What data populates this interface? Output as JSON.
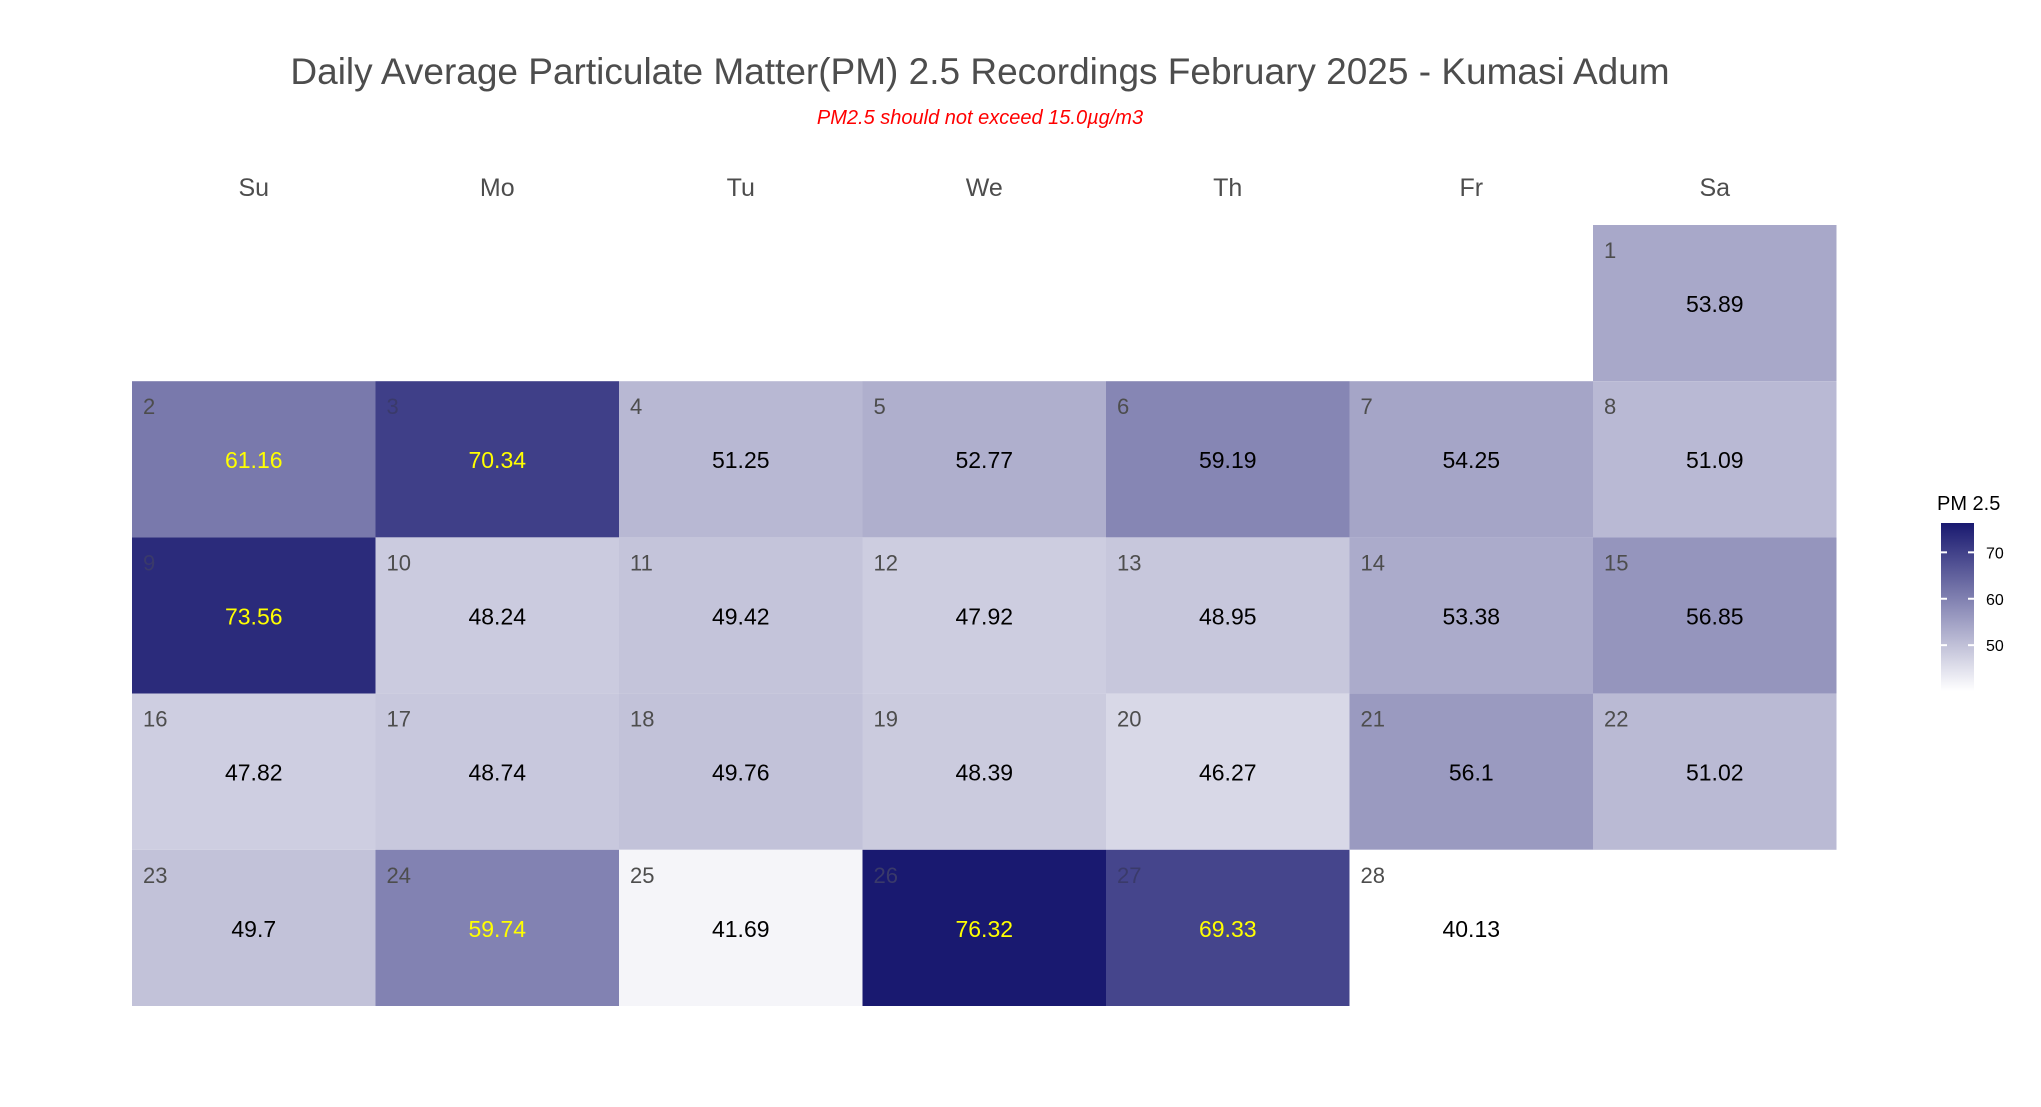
{
  "chart_data": {
    "type": "heatmap",
    "title": "Daily Average Particulate Matter(PM) 2.5 Recordings February 2025 -  Kumasi Adum",
    "subtitle": "PM2.5 should not exceed 15.0µg/m3",
    "weekdays": [
      "Su",
      "Mo",
      "Tu",
      "We",
      "Th",
      "Fr",
      "Sa"
    ],
    "first_weekday_index": 6,
    "days": [
      1,
      2,
      3,
      4,
      5,
      6,
      7,
      8,
      9,
      10,
      11,
      12,
      13,
      14,
      15,
      16,
      17,
      18,
      19,
      20,
      21,
      22,
      23,
      24,
      25,
      26,
      27,
      28
    ],
    "values": [
      53.89,
      61.16,
      70.34,
      51.25,
      52.77,
      59.19,
      54.25,
      51.09,
      73.56,
      48.24,
      49.42,
      47.92,
      48.95,
      53.38,
      56.85,
      47.82,
      48.74,
      49.76,
      48.39,
      46.27,
      56.1,
      51.02,
      49.7,
      59.74,
      41.69,
      76.32,
      69.33,
      40.13
    ],
    "value_labels": [
      "53.89",
      "61.16",
      "70.34",
      "51.25",
      "52.77",
      "59.19",
      "54.25",
      "51.09",
      "73.56",
      "48.24",
      "49.42",
      "47.92",
      "48.95",
      "53.38",
      "56.85",
      "47.82",
      "48.74",
      "49.76",
      "48.39",
      "46.27",
      "56.1",
      "51.02",
      "49.7",
      "59.74",
      "41.69",
      "76.32",
      "69.33",
      "40.13"
    ],
    "label_highlight_threshold": 59.5,
    "label_colors": {
      "normal": "#000000",
      "highlight": "#ffff00"
    },
    "daynum_colors": {
      "normal": "#4d4d4d",
      "on_dark": "#3a3a6a"
    },
    "color_scale": {
      "low": "#ffffff",
      "high": "#191970",
      "min": 40.13,
      "max": 76.32
    },
    "legend": {
      "title": "PM 2.5",
      "ticks": [
        50,
        60,
        70
      ],
      "tick_labels": [
        "50",
        "60",
        "70"
      ],
      "position": "right"
    }
  }
}
